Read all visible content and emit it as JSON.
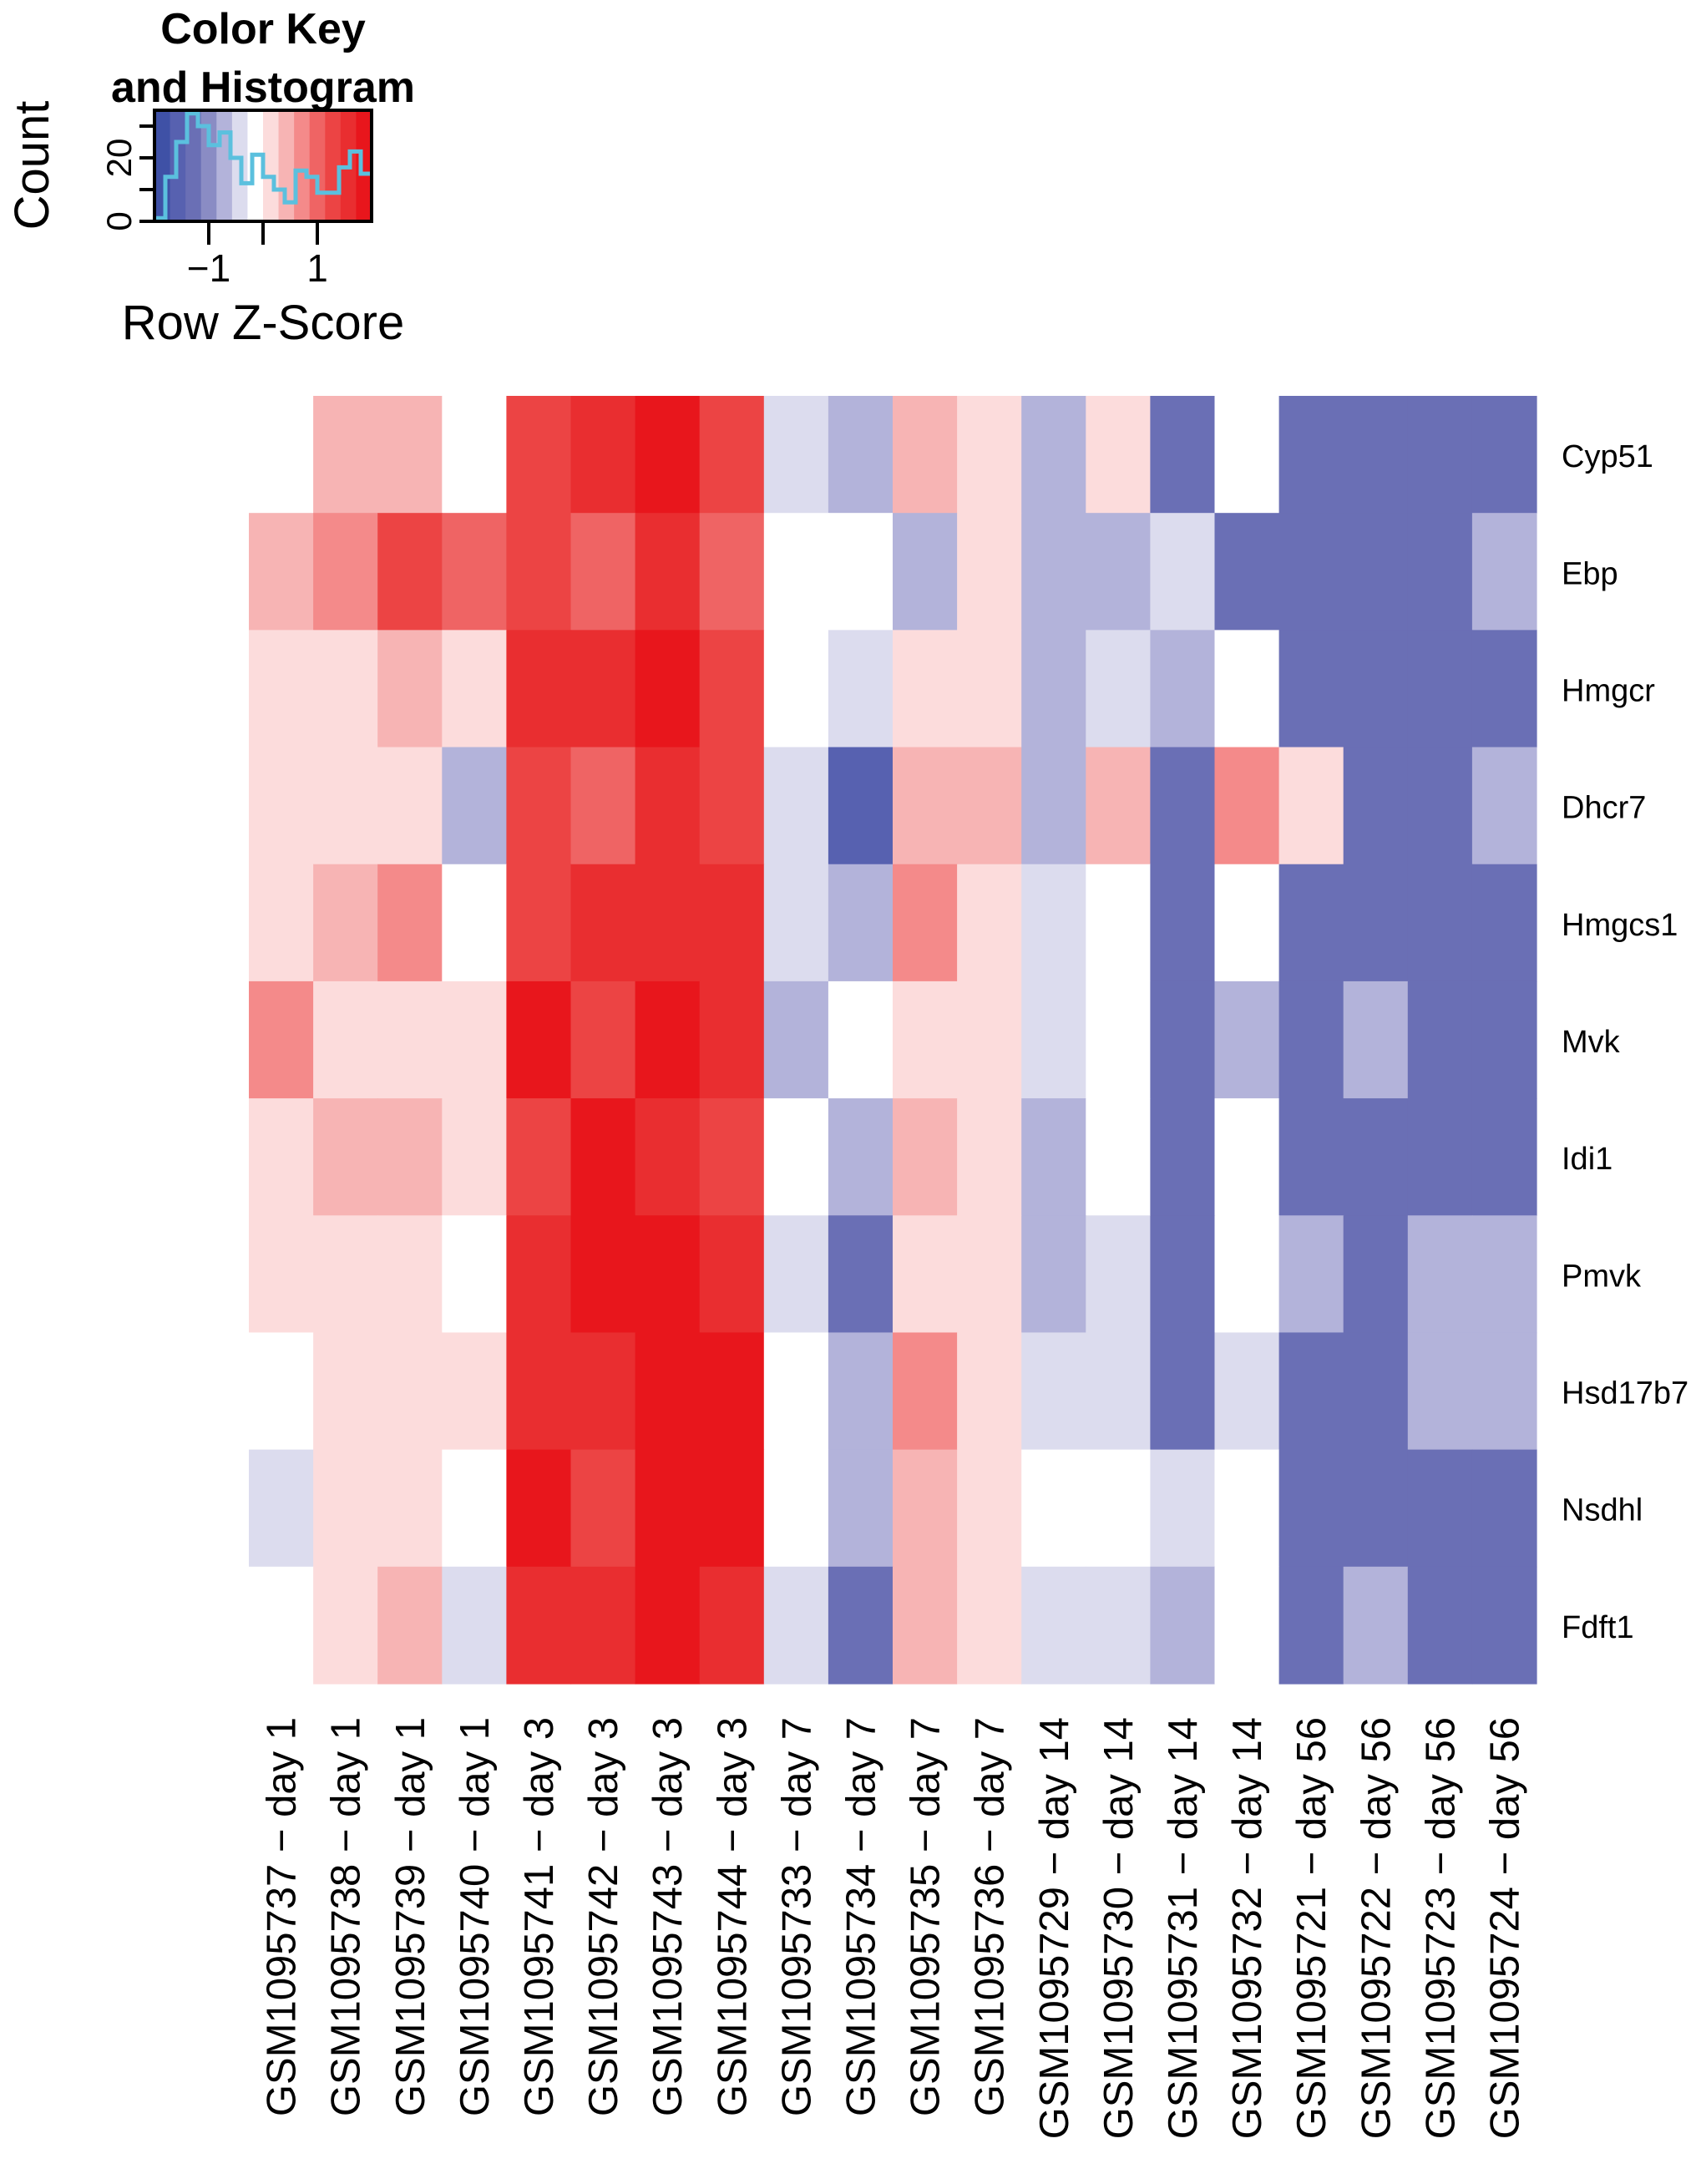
{
  "chart_data": {
    "type": "heatmap",
    "color_key": {
      "title_lines": [
        "Color Key",
        "and Histogram"
      ],
      "xlabel": "Row Z-Score",
      "ylabel": "Count",
      "xlim": [
        -2,
        2
      ],
      "ylim": [
        0,
        35
      ],
      "xticks": [
        -1,
        0,
        1
      ],
      "xtick_labels": [
        "−1",
        "",
        "1"
      ],
      "yticks": [
        0,
        10,
        20,
        30
      ],
      "ytick_labels": [
        "0",
        "",
        "20",
        ""
      ],
      "bins": [
        {
          "x0": -2.0,
          "x1": -1.8,
          "count": 1
        },
        {
          "x0": -1.8,
          "x1": -1.6,
          "count": 14
        },
        {
          "x0": -1.6,
          "x1": -1.4,
          "count": 25
        },
        {
          "x0": -1.4,
          "x1": -1.2,
          "count": 34
        },
        {
          "x0": -1.2,
          "x1": -1.0,
          "count": 30
        },
        {
          "x0": -1.0,
          "x1": -0.8,
          "count": 24
        },
        {
          "x0": -0.8,
          "x1": -0.6,
          "count": 28
        },
        {
          "x0": -0.6,
          "x1": -0.4,
          "count": 20
        },
        {
          "x0": -0.4,
          "x1": -0.2,
          "count": 12
        },
        {
          "x0": -0.2,
          "x1": 0.0,
          "count": 21
        },
        {
          "x0": 0.0,
          "x1": 0.2,
          "count": 14
        },
        {
          "x0": 0.2,
          "x1": 0.4,
          "count": 10
        },
        {
          "x0": 0.4,
          "x1": 0.6,
          "count": 6
        },
        {
          "x0": 0.6,
          "x1": 0.8,
          "count": 16
        },
        {
          "x0": 0.8,
          "x1": 1.0,
          "count": 14
        },
        {
          "x0": 1.0,
          "x1": 1.2,
          "count": 9
        },
        {
          "x0": 1.2,
          "x1": 1.4,
          "count": 9
        },
        {
          "x0": 1.4,
          "x1": 1.6,
          "count": 17
        },
        {
          "x0": 1.6,
          "x1": 1.8,
          "count": 22
        },
        {
          "x0": 1.8,
          "x1": 2.0,
          "count": 15
        }
      ],
      "histogram_color": "#5bc0de"
    },
    "color_scale": {
      "low": "#3a4fa3",
      "mid": "#ffffff",
      "high": "#e8161c",
      "levels": [
        "#3f51a6",
        "#5761b0",
        "#6a6fb5",
        "#8a8cc4",
        "#b3b3da",
        "#dcdcee",
        "#ffffff",
        "#fcdcdc",
        "#f7b4b4",
        "#f48a8a",
        "#ef6464",
        "#ec4444",
        "#e92e30",
        "#e8161c"
      ]
    },
    "rows": [
      "Cyp51",
      "Ebp",
      "Hmgcr",
      "Dhcr7",
      "Hmgcs1",
      "Mvk",
      "Idi1",
      "Pmvk",
      "Hsd17b7",
      "Nsdhl",
      "Fdft1"
    ],
    "columns": [
      "GSM1095737 − day 1",
      "GSM1095738 − day 1",
      "GSM1095739 − day 1",
      "GSM1095740 − day 1",
      "GSM1095741 − day 3",
      "GSM1095742 − day 3",
      "GSM1095743 − day 3",
      "GSM1095744 − day 3",
      "GSM1095733 − day 7",
      "GSM1095734 − day 7",
      "GSM1095735 − day 7",
      "GSM1095736 − day 7",
      "GSM1095729 − day 14",
      "GSM1095730 − day 14",
      "GSM1095731 − day 14",
      "GSM1095732 − day 14",
      "GSM1095721 − day 56",
      "GSM1095722 − day 56",
      "GSM1095723 − day 56",
      "GSM1095724 − day 56"
    ],
    "values": [
      [
        -0.2,
        0.3,
        0.3,
        -0.2,
        1.4,
        1.6,
        1.8,
        1.4,
        -0.4,
        -0.8,
        0.3,
        0.1,
        -0.8,
        0.0,
        -1.2,
        -0.2,
        -1.2,
        -1.2,
        -1.2,
        -1.2
      ],
      [
        0.3,
        0.6,
        1.4,
        1.0,
        1.4,
        1.0,
        1.6,
        1.0,
        -0.2,
        -0.2,
        -0.8,
        0.0,
        -0.8,
        -0.8,
        -0.4,
        -1.2,
        -1.4,
        -1.2,
        -1.4,
        -0.8
      ],
      [
        0.0,
        0.1,
        0.3,
        0.0,
        1.6,
        1.6,
        1.8,
        1.4,
        -0.2,
        -0.4,
        0.1,
        0.1,
        -0.8,
        -0.4,
        -0.8,
        -0.2,
        -1.4,
        -1.2,
        -1.4,
        -1.2
      ],
      [
        0.1,
        0.0,
        0.0,
        -0.8,
        1.4,
        1.0,
        1.6,
        1.4,
        -0.4,
        -1.6,
        0.3,
        0.3,
        -0.8,
        0.3,
        -1.4,
        0.6,
        0.0,
        -1.4,
        -1.2,
        -0.8
      ],
      [
        0.0,
        0.3,
        0.6,
        -0.2,
        1.4,
        1.6,
        1.6,
        1.6,
        -0.4,
        -0.8,
        0.6,
        0.1,
        -0.4,
        -0.2,
        -1.4,
        -0.2,
        -1.2,
        -1.2,
        -1.2,
        -1.2
      ],
      [
        0.6,
        0.1,
        0.0,
        0.0,
        1.8,
        1.4,
        1.8,
        1.6,
        -0.8,
        -0.2,
        0.0,
        0.0,
        -0.4,
        -0.2,
        -1.2,
        -0.8,
        -1.2,
        -0.8,
        -1.2,
        -1.2
      ],
      [
        0.1,
        0.3,
        0.3,
        0.0,
        1.4,
        1.8,
        1.6,
        1.4,
        -0.2,
        -0.8,
        0.3,
        0.1,
        -0.8,
        -0.2,
        -1.2,
        -0.2,
        -1.4,
        -1.2,
        -1.4,
        -1.4
      ],
      [
        0.1,
        0.1,
        0.1,
        -0.2,
        1.6,
        1.8,
        1.8,
        1.6,
        -0.4,
        -1.2,
        0.1,
        0.1,
        -0.8,
        -0.4,
        -1.4,
        -0.2,
        -0.8,
        -1.2,
        -0.8,
        -0.8
      ],
      [
        -0.2,
        0.0,
        0.1,
        0.0,
        1.6,
        1.6,
        1.8,
        1.8,
        -0.2,
        -0.8,
        0.6,
        0.0,
        -0.4,
        -0.4,
        -1.2,
        -0.4,
        -1.2,
        -1.4,
        -0.8,
        -0.8
      ],
      [
        -0.4,
        0.1,
        0.1,
        -0.2,
        1.8,
        1.4,
        1.8,
        1.8,
        -0.2,
        -0.8,
        0.3,
        0.1,
        -0.2,
        -0.2,
        -0.4,
        -0.2,
        -1.4,
        -1.4,
        -1.2,
        -1.2
      ],
      [
        -0.2,
        0.1,
        0.3,
        -0.4,
        1.6,
        1.6,
        1.8,
        1.6,
        -0.4,
        -1.2,
        0.3,
        0.1,
        -0.4,
        -0.4,
        -0.8,
        -0.2,
        -1.2,
        -0.8,
        -1.2,
        -1.2
      ]
    ]
  }
}
